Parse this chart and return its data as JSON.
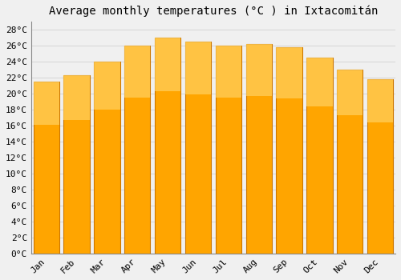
{
  "title": "Average monthly temperatures (°C ) in Ixtacomitán",
  "months": [
    "Jan",
    "Feb",
    "Mar",
    "Apr",
    "May",
    "Jun",
    "Jul",
    "Aug",
    "Sep",
    "Oct",
    "Nov",
    "Dec"
  ],
  "values": [
    21.5,
    22.3,
    24.0,
    26.0,
    27.0,
    26.5,
    26.0,
    26.2,
    25.8,
    24.5,
    23.0,
    21.8
  ],
  "bar_color": "#FFA500",
  "bar_edge_color": "#CC7700",
  "ylim": [
    0,
    29
  ],
  "yticks": [
    0,
    2,
    4,
    6,
    8,
    10,
    12,
    14,
    16,
    18,
    20,
    22,
    24,
    26,
    28
  ],
  "ytick_labels": [
    "0°C",
    "2°C",
    "4°C",
    "6°C",
    "8°C",
    "10°C",
    "12°C",
    "14°C",
    "16°C",
    "18°C",
    "20°C",
    "22°C",
    "24°C",
    "26°C",
    "28°C"
  ],
  "background_color": "#f0f0f0",
  "grid_color": "#d8d8d8",
  "title_fontsize": 10,
  "tick_fontsize": 8,
  "font_family": "monospace",
  "bar_width": 0.85
}
